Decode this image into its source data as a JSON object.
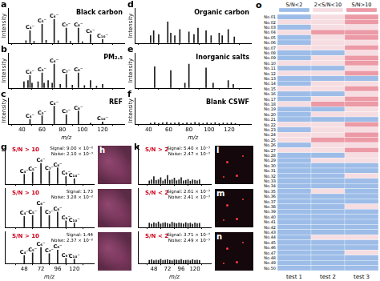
{
  "chart_data": [
    {
      "type": "bar",
      "panel": "a",
      "title": "Black carbon",
      "y_label": "Intensity",
      "color": "#1a1a1a",
      "grid": false,
      "tick_labels": false,
      "x": [
        44,
        48,
        52,
        60,
        64,
        72,
        76,
        84,
        88,
        96,
        100,
        108,
        120
      ],
      "values": [
        0.1,
        0.5,
        0.08,
        0.75,
        0.12,
        0.95,
        0.1,
        0.6,
        0.08,
        0.6,
        0.06,
        0.35,
        0.15
      ],
      "peak_labels": [
        {
          "x": 48,
          "text": "C₄⁻"
        },
        {
          "x": 60,
          "text": "C₅⁻"
        },
        {
          "x": 72,
          "text": "C₆⁻"
        },
        {
          "x": 84,
          "text": "C₇⁻"
        },
        {
          "x": 96,
          "text": "C₈⁻"
        },
        {
          "x": 108,
          "text": "C₉⁻"
        },
        {
          "x": 120,
          "text": "C₁₀⁻"
        }
      ],
      "xlim": [
        38,
        130
      ],
      "xticks": [
        40,
        60,
        80,
        100,
        120
      ],
      "ylim": [
        0,
        1.4
      ]
    },
    {
      "type": "bar",
      "panel": "b",
      "title": "PM₂.₅",
      "y_label": "Intensity",
      "color": "#1a1a1a",
      "grid": false,
      "tick_labels": false,
      "x": [
        42,
        46,
        48,
        50,
        56,
        60,
        62,
        66,
        70,
        72,
        78,
        84,
        90,
        96,
        102,
        108,
        114,
        120
      ],
      "values": [
        0.25,
        0.3,
        0.5,
        0.2,
        0.25,
        0.6,
        0.2,
        0.3,
        0.2,
        0.95,
        0.15,
        0.55,
        0.12,
        0.6,
        0.1,
        0.3,
        0.08,
        0.15
      ],
      "peak_labels": [
        {
          "x": 48,
          "text": "C₄⁻"
        },
        {
          "x": 60,
          "text": "C₅⁻"
        },
        {
          "x": 72,
          "text": "C₆⁻"
        },
        {
          "x": 84,
          "text": "C₇⁻"
        },
        {
          "x": 96,
          "text": "C₈⁻"
        }
      ],
      "xlim": [
        38,
        130
      ],
      "xticks": [
        40,
        60,
        80,
        100,
        120
      ],
      "ylim": [
        0,
        1.4
      ]
    },
    {
      "type": "bar",
      "panel": "c",
      "title": "REF",
      "y_label": "Intensity",
      "x_label": "m/z",
      "color": "#1a1a1a",
      "grid": false,
      "tick_labels": "x",
      "x": [
        48,
        60,
        72,
        84,
        96,
        108,
        120
      ],
      "values": [
        0.25,
        0.45,
        0.95,
        0.5,
        0.7,
        0.06,
        0.12
      ],
      "peak_labels": [
        {
          "x": 48,
          "text": "C₄⁻"
        },
        {
          "x": 60,
          "text": "C₅⁻"
        },
        {
          "x": 72,
          "text": "C₆⁻"
        },
        {
          "x": 84,
          "text": "C₇⁻"
        },
        {
          "x": 96,
          "text": "C₈⁻"
        },
        {
          "x": 120,
          "text": "C₁₀⁻"
        }
      ],
      "xlim": [
        38,
        130
      ],
      "xticks": [
        40,
        60,
        80,
        100,
        120
      ],
      "ylim": [
        0,
        1.4
      ]
    },
    {
      "type": "bar",
      "panel": "d",
      "title": "Organic carbon",
      "y_label": "Intensity",
      "color": "#1a1a1a",
      "grid": false,
      "tick_labels": false,
      "x": [
        42,
        45,
        50,
        59,
        62,
        66,
        71,
        80,
        85,
        89,
        97,
        102,
        110,
        113,
        119,
        125
      ],
      "values": [
        0.3,
        0.5,
        0.35,
        0.85,
        0.4,
        0.3,
        0.55,
        0.45,
        0.35,
        0.6,
        0.5,
        0.3,
        0.4,
        0.3,
        0.55,
        0.25
      ],
      "xlim": [
        38,
        130
      ],
      "xticks": [
        40,
        60,
        80,
        100,
        120
      ],
      "ylim": [
        0,
        1.4
      ]
    },
    {
      "type": "bar",
      "panel": "e",
      "title": "Inorganic salts",
      "y_label": "Intensity",
      "color": "#1a1a1a",
      "grid": false,
      "tick_labels": false,
      "x": [
        46,
        62,
        76,
        80,
        97,
        104,
        119,
        124
      ],
      "values": [
        0.85,
        0.7,
        0.2,
        0.95,
        0.8,
        0.2,
        0.3,
        0.15
      ],
      "xlim": [
        38,
        130
      ],
      "xticks": [
        40,
        60,
        80,
        100,
        120
      ],
      "ylim": [
        0,
        1.4
      ]
    },
    {
      "type": "bar",
      "panel": "f",
      "title": "Blank CSWF",
      "y_label": "Intensity",
      "x_label": "m/z",
      "color": "#1a1a1a",
      "grid": false,
      "tick_labels": "x",
      "x": [
        42,
        46,
        50,
        54,
        58,
        62,
        66,
        70,
        74,
        78,
        82,
        86,
        90,
        94,
        98,
        102,
        106,
        110,
        114,
        118,
        122,
        126
      ],
      "values": [
        0.06,
        0.09,
        0.05,
        0.08,
        0.1,
        0.06,
        0.07,
        0.09,
        0.05,
        0.08,
        0.06,
        0.1,
        0.07,
        0.05,
        0.08,
        0.06,
        0.09,
        0.05,
        0.07,
        0.06,
        0.08,
        0.05
      ],
      "xlim": [
        38,
        130
      ],
      "xticks": [
        40,
        60,
        80,
        100,
        120
      ],
      "ylim": [
        0,
        1.4
      ]
    },
    {
      "type": "bar",
      "panel": "g",
      "color": "#1a1a1a",
      "grid": false,
      "tick_labels": false,
      "annotations": [
        "S/N > 10",
        "Signal: 9.00 × 10⁻²",
        "Noise: 2.10 × 10⁻³"
      ],
      "x": [
        48,
        60,
        72,
        84,
        96,
        108,
        120
      ],
      "values": [
        0.45,
        0.55,
        0.95,
        0.6,
        0.75,
        0.35,
        0.25
      ],
      "peak_labels": [
        {
          "x": 48,
          "text": "C₄⁻"
        },
        {
          "x": 60,
          "text": "C₅⁻"
        },
        {
          "x": 72,
          "text": "C₆⁻"
        },
        {
          "x": 84,
          "text": "C₇⁻"
        },
        {
          "x": 96,
          "text": "C₈⁻"
        },
        {
          "x": 108,
          "text": "C₉⁻"
        },
        {
          "x": 120,
          "text": "C₁₀⁻"
        }
      ],
      "xlim": [
        36,
        132
      ],
      "xticks": [
        48,
        72,
        96,
        120
      ],
      "ylim": [
        0,
        1.8
      ]
    },
    {
      "type": "bar",
      "color": "#1a1a1a",
      "grid": false,
      "tick_labels": false,
      "annotations": [
        "S/N > 10",
        "Signal: 1.73",
        "Noise: 3.28 × 10⁻²"
      ],
      "x": [
        48,
        60,
        72,
        84,
        96,
        108,
        120
      ],
      "values": [
        0.5,
        0.55,
        0.95,
        0.55,
        0.7,
        0.3,
        0.2
      ],
      "peak_labels": [
        {
          "x": 48,
          "text": "C₄⁻"
        },
        {
          "x": 60,
          "text": "C₅⁻"
        },
        {
          "x": 72,
          "text": "C₆⁻"
        },
        {
          "x": 84,
          "text": "C₇⁻"
        },
        {
          "x": 96,
          "text": "C₈⁻"
        },
        {
          "x": 108,
          "text": "C₉⁻"
        },
        {
          "x": 120,
          "text": "C₁₀⁻"
        }
      ],
      "xlim": [
        36,
        132
      ],
      "xticks": [
        48,
        72,
        96,
        120
      ],
      "ylim": [
        0,
        1.8
      ]
    },
    {
      "type": "bar",
      "x_label": "m/z",
      "color": "#1a1a1a",
      "grid": false,
      "tick_labels": "x",
      "annotations": [
        "S/N > 10",
        "Signal: 1.44",
        "Noise: 2.37 × 10⁻²"
      ],
      "x": [
        48,
        60,
        72,
        84,
        96,
        108,
        120
      ],
      "values": [
        0.45,
        0.6,
        0.9,
        0.55,
        0.75,
        0.3,
        0.25
      ],
      "peak_labels": [
        {
          "x": 48,
          "text": "C₄⁻"
        },
        {
          "x": 60,
          "text": "C₅⁻"
        },
        {
          "x": 72,
          "text": "C₆⁻"
        },
        {
          "x": 84,
          "text": "C₇⁻"
        },
        {
          "x": 96,
          "text": "C₈⁻"
        },
        {
          "x": 108,
          "text": "C₉⁻"
        },
        {
          "x": 120,
          "text": "C₁₀⁻"
        }
      ],
      "xlim": [
        36,
        132
      ],
      "xticks": [
        48,
        72,
        96,
        120
      ],
      "ylim": [
        0,
        1.8
      ]
    },
    {
      "type": "bar",
      "panel": "k",
      "color": "#1a1a1a",
      "grid": false,
      "tick_labels": false,
      "annotations": [
        "S/N > 2",
        "Signal: 5.40 × 10⁻³",
        "Noise: 2.47 × 10⁻³"
      ],
      "x": [
        40,
        44,
        48,
        52,
        56,
        60,
        64,
        68,
        72,
        76,
        80,
        84,
        88,
        92,
        96,
        100,
        104,
        108,
        112,
        116,
        120,
        124,
        128
      ],
      "values": [
        0.15,
        0.2,
        0.35,
        0.18,
        0.2,
        0.3,
        0.15,
        0.22,
        0.4,
        0.18,
        0.2,
        0.28,
        0.16,
        0.2,
        0.3,
        0.15,
        0.18,
        0.22,
        0.14,
        0.2,
        0.18,
        0.15,
        0.2
      ],
      "xlim": [
        36,
        132
      ],
      "xticks": [
        48,
        72,
        96,
        120
      ],
      "ylim": [
        0,
        1.8
      ]
    },
    {
      "type": "bar",
      "color": "#1a1a1a",
      "grid": false,
      "tick_labels": false,
      "annotations": [
        "S/N < 2",
        "Signal: 2.61 × 10⁻³",
        "Noise: 2.41 × 10⁻³"
      ],
      "x": [
        40,
        44,
        48,
        52,
        56,
        60,
        64,
        68,
        72,
        76,
        80,
        84,
        88,
        92,
        96,
        100,
        104,
        108,
        112,
        116,
        120,
        124,
        128
      ],
      "values": [
        0.2,
        0.15,
        0.22,
        0.18,
        0.25,
        0.16,
        0.2,
        0.22,
        0.18,
        0.15,
        0.24,
        0.2,
        0.17,
        0.21,
        0.19,
        0.16,
        0.22,
        0.18,
        0.2,
        0.15,
        0.21,
        0.17,
        0.19
      ],
      "xlim": [
        36,
        132
      ],
      "xticks": [
        48,
        72,
        96,
        120
      ],
      "ylim": [
        0,
        1.8
      ]
    },
    {
      "type": "bar",
      "x_label": "m/z",
      "color": "#1a1a1a",
      "grid": false,
      "tick_labels": "x",
      "annotations": [
        "S/N < 2",
        "Signal: 3.71 × 10⁻³",
        "Noise: 2.49 × 10⁻³"
      ],
      "x": [
        40,
        44,
        48,
        52,
        56,
        60,
        64,
        68,
        72,
        76,
        80,
        84,
        88,
        92,
        96,
        100,
        104,
        108,
        112,
        116,
        120,
        124,
        128
      ],
      "values": [
        0.18,
        0.22,
        0.16,
        0.2,
        0.19,
        0.24,
        0.17,
        0.2,
        0.22,
        0.18,
        0.16,
        0.21,
        0.2,
        0.18,
        0.23,
        0.17,
        0.19,
        0.2,
        0.16,
        0.22,
        0.18,
        0.2,
        0.17
      ],
      "xlim": [
        36,
        132
      ],
      "xticks": [
        48,
        72,
        96,
        120
      ],
      "ylim": [
        0,
        1.8
      ]
    },
    {
      "type": "heatmap",
      "panel": "o",
      "legend_items": [
        {
          "name": "S/N<2",
          "color": "#9dbde8"
        },
        {
          "name": "2<S/N<10",
          "color": "#f6dde2"
        },
        {
          "name": "S/N>10",
          "color": "#ec9aa6"
        }
      ],
      "columns": [
        "test 1",
        "test 2",
        "test 3"
      ],
      "categories": [
        "No.01",
        "No.02",
        "No.03",
        "No.04",
        "No.05",
        "No.06",
        "No.07",
        "No.08",
        "No.09",
        "No.10",
        "No.11",
        "No.12",
        "No.13",
        "No.14",
        "No.15",
        "No.16",
        "No.17",
        "No.18",
        "No.19",
        "No.20",
        "No.21",
        "No.22",
        "No.23",
        "No.24",
        "No.25",
        "No.26",
        "No.27",
        "No.28",
        "No.29",
        "No.30",
        "No.31",
        "No.32",
        "No.33",
        "No.34",
        "No.35",
        "No.36",
        "No.37",
        "No.38",
        "No.39",
        "No.40",
        "No.41",
        "No.42",
        "No.43",
        "No.44",
        "No.45",
        "No.46",
        "No.47",
        "No.48",
        "No.49",
        "No.50"
      ],
      "cells": [
        [
          0,
          1,
          2
        ],
        [
          1,
          1,
          2
        ],
        [
          0,
          1,
          1
        ],
        [
          1,
          2,
          2
        ],
        [
          0,
          1,
          2
        ],
        [
          0,
          1,
          1
        ],
        [
          1,
          1,
          2
        ],
        [
          0,
          0,
          1
        ],
        [
          0,
          1,
          2
        ],
        [
          1,
          1,
          2
        ],
        [
          0,
          0,
          1
        ],
        [
          1,
          1,
          2
        ],
        [
          0,
          0,
          0
        ],
        [
          0,
          1,
          1
        ],
        [
          1,
          1,
          2
        ],
        [
          0,
          0,
          1
        ],
        [
          0,
          1,
          2
        ],
        [
          1,
          2,
          2
        ],
        [
          0,
          0,
          1
        ],
        [
          0,
          1,
          1
        ],
        [
          0,
          0,
          0
        ],
        [
          1,
          1,
          2
        ],
        [
          0,
          1,
          1
        ],
        [
          1,
          1,
          2
        ],
        [
          1,
          2,
          2
        ],
        [
          0,
          1,
          1
        ],
        [
          1,
          1,
          2
        ],
        [
          0,
          0,
          1
        ],
        [
          0,
          1,
          1
        ],
        [
          0,
          0,
          0
        ],
        [
          0,
          0,
          0
        ],
        [
          0,
          0,
          1
        ],
        [
          0,
          0,
          0
        ],
        [
          0,
          0,
          0
        ],
        [
          0,
          1,
          0
        ],
        [
          0,
          0,
          0
        ],
        [
          0,
          0,
          0
        ],
        [
          0,
          0,
          1
        ],
        [
          0,
          0,
          0
        ],
        [
          0,
          0,
          0
        ],
        [
          0,
          0,
          0
        ],
        [
          0,
          0,
          0
        ],
        [
          0,
          0,
          0
        ],
        [
          0,
          1,
          1
        ],
        [
          0,
          0,
          0
        ],
        [
          0,
          0,
          0
        ],
        [
          0,
          0,
          1
        ],
        [
          0,
          0,
          0
        ],
        [
          0,
          0,
          0
        ],
        [
          0,
          0,
          0
        ]
      ]
    }
  ],
  "images": [
    {
      "panel": "h",
      "color": "#5b2a45"
    },
    {
      "color": "#5b2a45"
    },
    {
      "color": "#5b2a45"
    },
    {
      "panel": "l",
      "color": "#14080c"
    },
    {
      "panel": "m",
      "color": "#14080c"
    },
    {
      "panel": "n",
      "color": "#14080c"
    }
  ]
}
